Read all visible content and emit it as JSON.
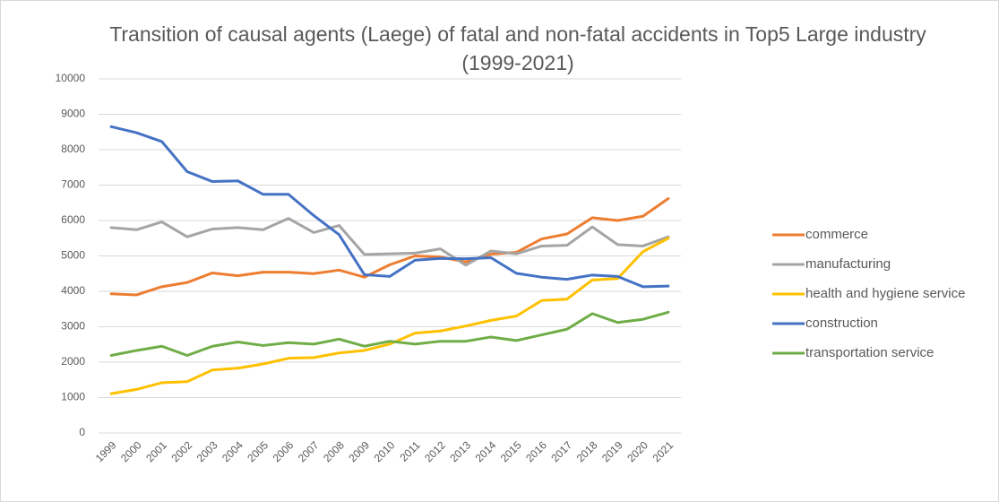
{
  "chart_data": {
    "type": "line",
    "title": "Transition of causal agents (Laege) of fatal and non-fatal accidents in Top5 Large industry (1999-2021)",
    "categories": [
      "1999",
      "2000",
      "2001",
      "2002",
      "2003",
      "2004",
      "2005",
      "2006",
      "2007",
      "2008",
      "2009",
      "2010",
      "2011",
      "2012",
      "2013",
      "2014",
      "2015",
      "2016",
      "2017",
      "2018",
      "2019",
      "2020",
      "2021"
    ],
    "series": [
      {
        "name": "commerce",
        "color": "#ed7d31",
        "values": [
          3930,
          3900,
          4130,
          4250,
          4520,
          4440,
          4540,
          4540,
          4500,
          4600,
          4400,
          4750,
          5000,
          4970,
          4830,
          5050,
          5100,
          5480,
          5620,
          6080,
          6000,
          6120,
          6620
        ]
      },
      {
        "name": "manufacturing",
        "color": "#a5a5a5",
        "values": [
          5800,
          5740,
          5960,
          5540,
          5760,
          5800,
          5740,
          6060,
          5660,
          5860,
          5040,
          5060,
          5080,
          5200,
          4740,
          5140,
          5060,
          5280,
          5300,
          5820,
          5320,
          5280,
          5540
        ]
      },
      {
        "name": "health and hygiene service",
        "color": "#ffc000",
        "values": [
          1110,
          1230,
          1420,
          1450,
          1780,
          1830,
          1950,
          2110,
          2130,
          2260,
          2330,
          2510,
          2820,
          2880,
          3020,
          3180,
          3300,
          3740,
          3780,
          4320,
          4360,
          5120,
          5500
        ]
      },
      {
        "name": "construction",
        "color": "#4472c4",
        "values": [
          8650,
          8480,
          8230,
          7380,
          7100,
          7120,
          6740,
          6740,
          6140,
          5600,
          4470,
          4420,
          4880,
          4930,
          4920,
          4950,
          4510,
          4400,
          4340,
          4460,
          4420,
          4130,
          4150
        ]
      },
      {
        "name": "transportation service",
        "color": "#70ad47",
        "values": [
          2190,
          2330,
          2450,
          2190,
          2450,
          2570,
          2470,
          2550,
          2510,
          2650,
          2450,
          2590,
          2510,
          2590,
          2590,
          2710,
          2610,
          2770,
          2930,
          3370,
          3120,
          3210,
          3410
        ]
      }
    ],
    "ylim": [
      0,
      10000
    ],
    "yticks": [
      0,
      1000,
      2000,
      3000,
      4000,
      5000,
      6000,
      7000,
      8000,
      9000,
      10000
    ],
    "grid": true,
    "legend": "right"
  }
}
